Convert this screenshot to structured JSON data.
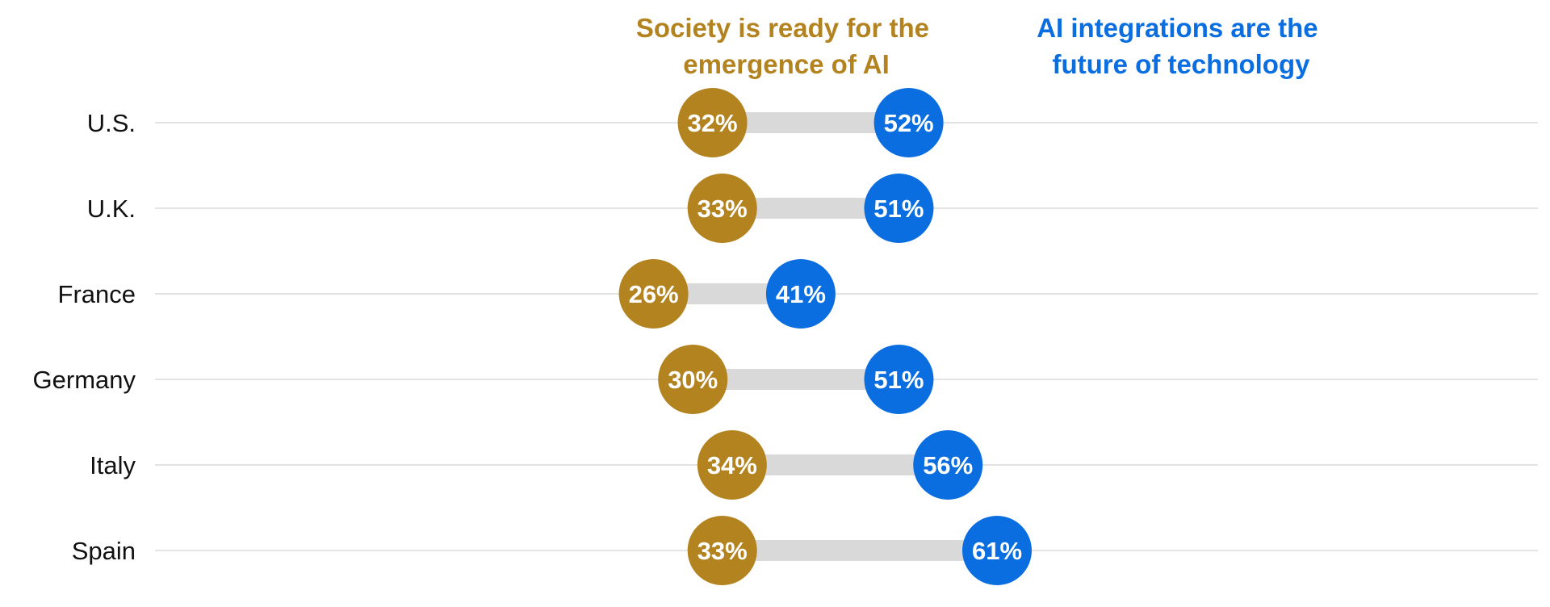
{
  "chart_data": {
    "type": "dumbbell",
    "categories": [
      "U.S.",
      "U.K.",
      "France",
      "Germany",
      "Italy",
      "Spain"
    ],
    "series": [
      {
        "name": "Society is ready for the emergence of AI",
        "name_lines": [
          "Society is ready for the",
          "emergence of AI"
        ],
        "values": [
          32,
          33,
          26,
          30,
          34,
          33
        ],
        "labels": [
          "32%",
          "33%",
          "26%",
          "30%",
          "34%",
          "33%"
        ],
        "color": "#B38320"
      },
      {
        "name": "AI integrations are the future of technology",
        "name_lines": [
          "AI integrations are the",
          "future of technology"
        ],
        "values": [
          52,
          51,
          41,
          51,
          56,
          61
        ],
        "labels": [
          "52%",
          "51%",
          "41%",
          "51%",
          "56%",
          "61%"
        ],
        "color": "#0B6EE0"
      }
    ],
    "value_suffix": "%",
    "connector_color": "#D9D9D9",
    "gridline_color": "#DADADA",
    "grid": true,
    "legend": "top-labels"
  }
}
